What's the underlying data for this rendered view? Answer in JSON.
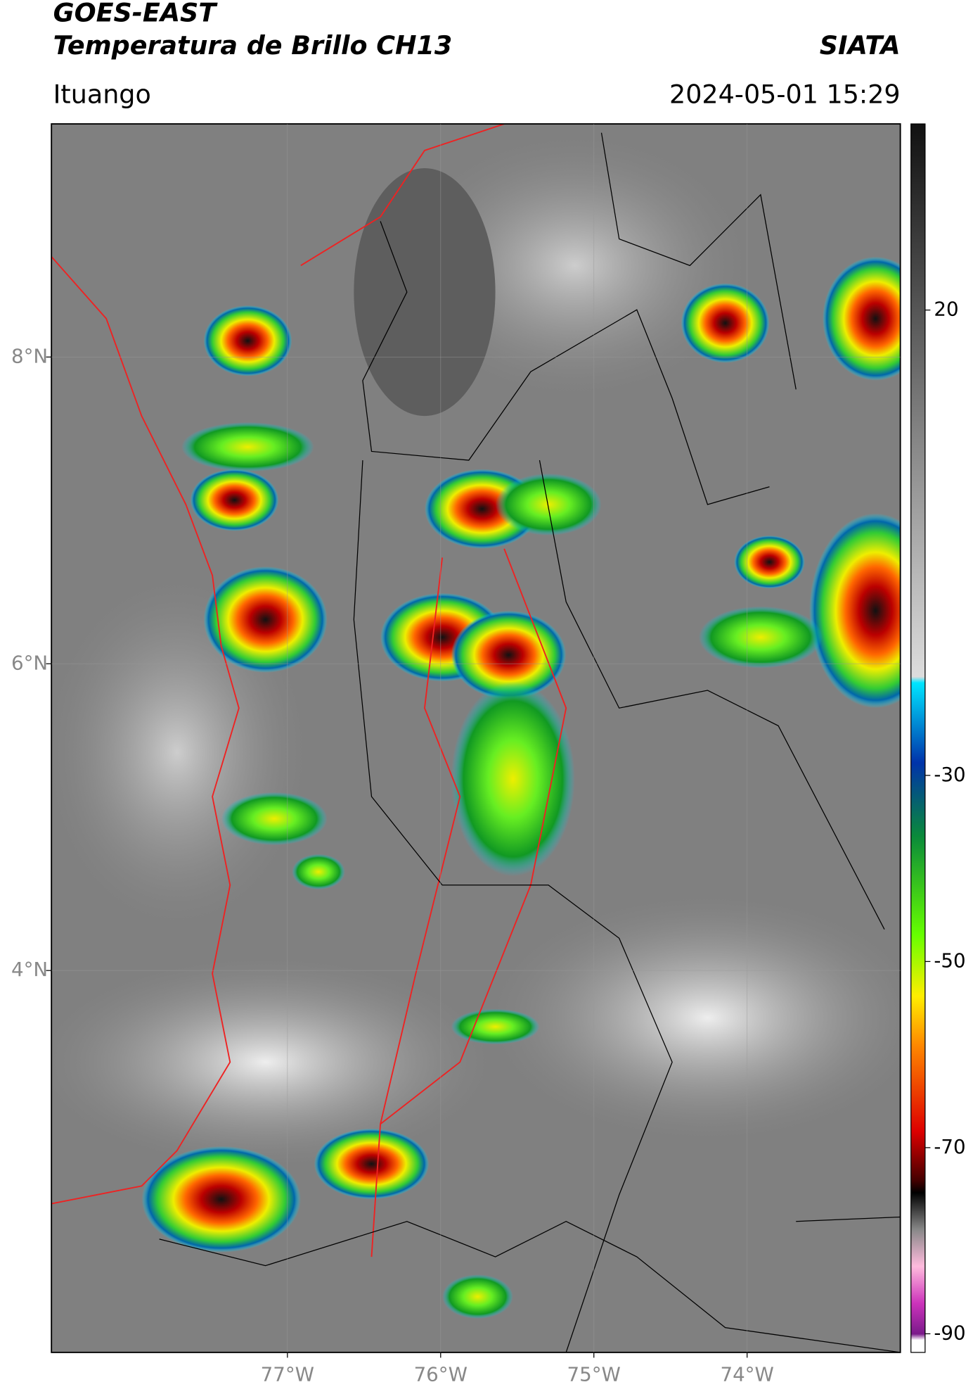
{
  "title": "GOES-EAST",
  "subtitle": "Temperatura de Brillo CH13",
  "agency": "SIATA",
  "location": "Ituango",
  "timestamp": "2024-05-01 15:29",
  "map": {
    "xlim": [
      -78.54,
      -73.0
    ],
    "ylim": [
      1.51,
      9.52
    ],
    "xticks": [
      {
        "value": -77,
        "label": "77°W"
      },
      {
        "value": -76,
        "label": "76°W"
      },
      {
        "value": -75,
        "label": "75°W"
      },
      {
        "value": -74,
        "label": "74°W"
      }
    ],
    "yticks": [
      {
        "value": 8,
        "label": "8°N"
      },
      {
        "value": 6,
        "label": "6°N"
      },
      {
        "value": 4,
        "label": "4°N"
      }
    ]
  },
  "colorbar": {
    "lim": [
      -92,
      40
    ],
    "ticks": [
      20,
      -30,
      -50,
      -70,
      -90
    ]
  }
}
